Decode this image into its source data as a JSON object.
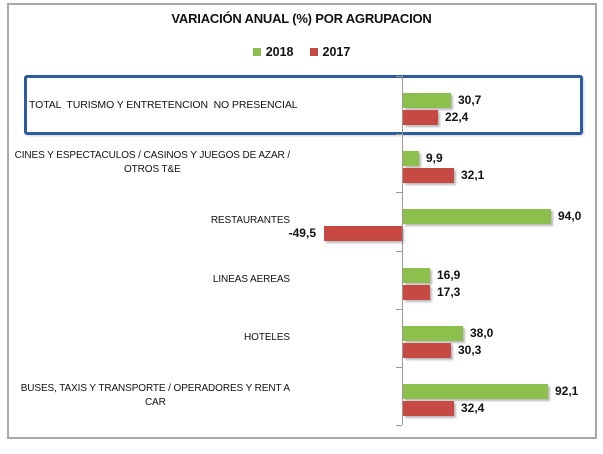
{
  "header": {
    "title": "VARIACIÓN ANUAL (%) POR AGRUPACION"
  },
  "colors": {
    "series_2018": "#8DBF4D",
    "series_2017": "#C74944",
    "highlight_border": "#2E5B9B",
    "axis": "#9A9A9A",
    "chart_border": "#A8A8A8",
    "text": "#111111"
  },
  "chart_data": {
    "type": "bar",
    "orientation": "horizontal",
    "title": "VARIACIÓN ANUAL (%) POR AGRUPACION",
    "legend_position": "top-center",
    "grid": false,
    "value_axis_shown": false,
    "xlim": [
      -60,
      110
    ],
    "categories": [
      "TOTAL  TURISMO Y ENTRETENCION  NO PRESENCIAL",
      "CINES Y ESPECTACULOS / CASINOS Y JUEGOS DE AZAR /\nOTROS T&E",
      "RESTAURANTES",
      "LINEAS AEREAS",
      "HOTELES",
      "BUSES, TAXIS Y TRANSPORTE / OPERADORES Y RENT A\nCAR"
    ],
    "series": [
      {
        "name": "2018",
        "color": "#8DBF4D",
        "values": [
          30.7,
          9.9,
          94.0,
          16.9,
          38.0,
          92.1
        ],
        "labels": [
          "30,7",
          "9,9",
          "94,0",
          "16,9",
          "38,0",
          "92,1"
        ]
      },
      {
        "name": "2017",
        "color": "#C74944",
        "values": [
          22.4,
          32.1,
          -49.5,
          17.3,
          30.3,
          32.4
        ],
        "labels": [
          "22,4",
          "32,1",
          "-49,5",
          "17,3",
          "30,3",
          "32,4"
        ]
      }
    ],
    "highlighted_category_index": 0,
    "annotations": [
      "Blue rectangle highlighting the TOTAL row"
    ]
  }
}
